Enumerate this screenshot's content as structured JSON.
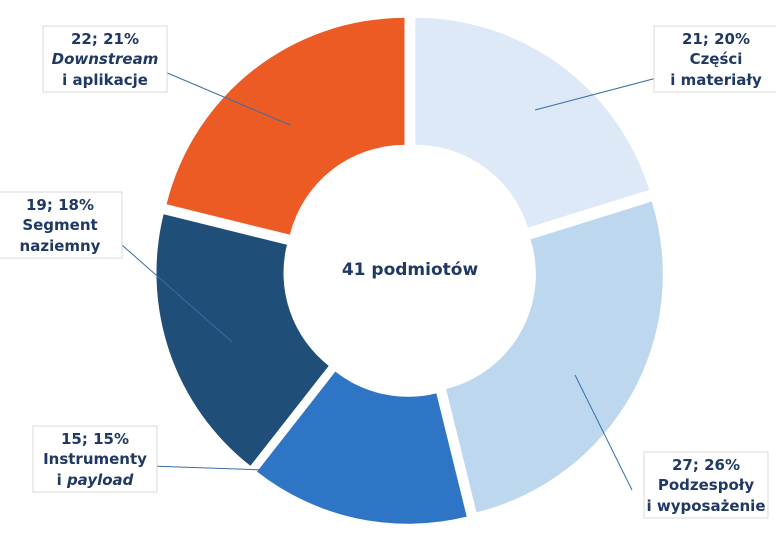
{
  "chart_data": {
    "type": "donut",
    "center_label": "41 podmiotów",
    "categories": [
      [
        [
          {
            "text": "Części"
          }
        ],
        [
          {
            "text": "i materiały"
          }
        ]
      ],
      [
        [
          {
            "text": "Podzespoły"
          }
        ],
        [
          {
            "text": "i wyposażenie"
          }
        ]
      ],
      [
        [
          {
            "text": "Instrumenty"
          }
        ],
        [
          {
            "text": "i "
          },
          {
            "text": "payload",
            "italic": true
          }
        ]
      ],
      [
        [
          {
            "text": "Segment"
          }
        ],
        [
          {
            "text": "naziemny"
          }
        ]
      ],
      [
        [
          {
            "text": "Downstream",
            "italic": true
          }
        ],
        [
          {
            "text": "i aplikacje"
          }
        ]
      ]
    ],
    "values": [
      21,
      27,
      15,
      19,
      22
    ],
    "value_labels": [
      "21; 20%",
      "27; 26%",
      "15; 15%",
      "19; 18%",
      "22; 21%"
    ],
    "colors": [
      "#dde9f6",
      "#bdd7ee",
      "#2e75c6",
      "#1f4e79",
      "#ec5b24"
    ]
  }
}
